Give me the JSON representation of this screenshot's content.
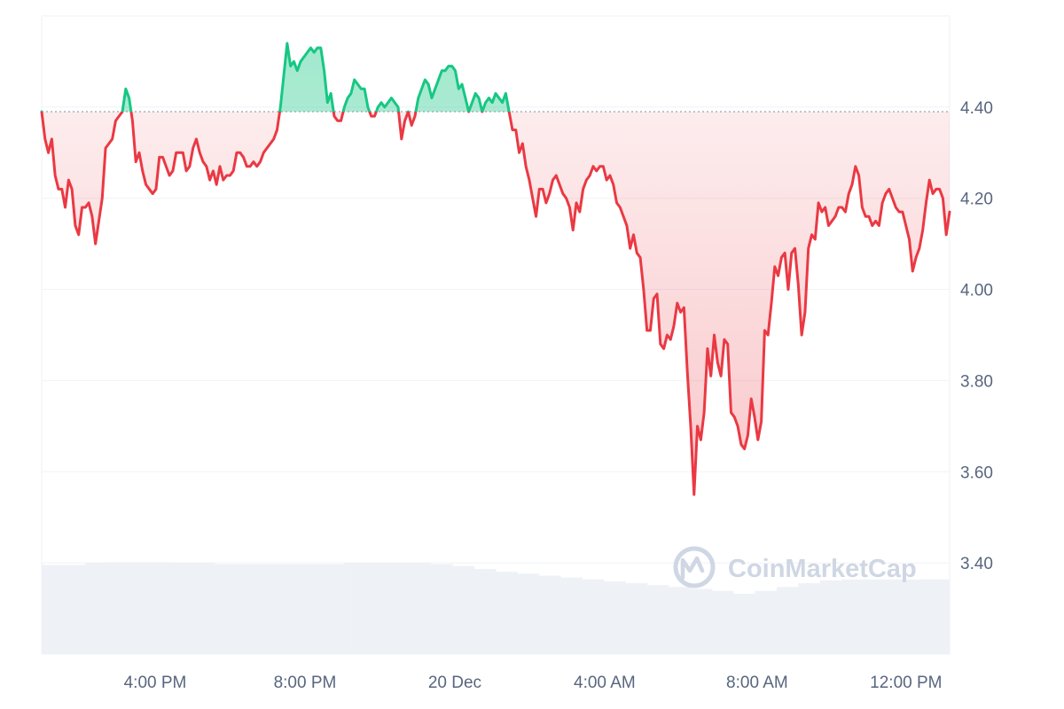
{
  "chart_data": {
    "type": "line",
    "title": "",
    "xlabel": "",
    "ylabel": "",
    "ylim": [
      3.2,
      4.6
    ],
    "reference_value": 4.39,
    "y_ticks": [
      3.4,
      3.6,
      3.8,
      4.0,
      4.2,
      4.4
    ],
    "y_tick_labels": [
      "3.40",
      "3.60",
      "3.80",
      "4.00",
      "4.20",
      "4.40"
    ],
    "x_tick_labels": [
      "4:00 PM",
      "8:00 PM",
      "20 Dec",
      "4:00 AM",
      "8:00 AM",
      "12:00 PM"
    ],
    "x_tick_positions": [
      0.125,
      0.29,
      0.455,
      0.62,
      0.788,
      0.952
    ],
    "grid": true,
    "colors": {
      "up": "#16c784",
      "down": "#ea3943",
      "grid": "#eff2f5",
      "volume": "#eef1f6"
    },
    "series": [
      {
        "values": [
          4.39,
          4.33,
          4.3,
          4.33,
          4.25,
          4.22,
          4.22,
          4.18,
          4.24,
          4.22,
          4.14,
          4.12,
          4.18,
          4.18,
          4.19,
          4.16,
          4.1,
          4.15,
          4.2,
          4.31,
          4.32,
          4.33,
          4.37,
          4.38,
          4.39,
          4.44,
          4.42,
          4.37,
          4.28,
          4.3,
          4.26,
          4.23,
          4.22,
          4.21,
          4.22,
          4.29,
          4.29,
          4.27,
          4.25,
          4.26,
          4.3,
          4.3,
          4.3,
          4.26,
          4.27,
          4.31,
          4.33,
          4.3,
          4.28,
          4.27,
          4.24,
          4.26,
          4.23,
          4.27,
          4.24,
          4.25,
          4.25,
          4.26,
          4.3,
          4.3,
          4.29,
          4.27,
          4.27,
          4.28,
          4.27,
          4.28,
          4.3,
          4.31,
          4.32,
          4.33,
          4.35,
          4.4,
          4.47,
          4.54,
          4.49,
          4.5,
          4.48,
          4.5,
          4.51,
          4.52,
          4.53,
          4.52,
          4.53,
          4.53,
          4.48,
          4.41,
          4.43,
          4.38,
          4.37,
          4.37,
          4.4,
          4.42,
          4.43,
          4.46,
          4.45,
          4.44,
          4.44,
          4.4,
          4.38,
          4.38,
          4.4,
          4.41,
          4.4,
          4.41,
          4.42,
          4.41,
          4.4,
          4.33,
          4.37,
          4.39,
          4.36,
          4.38,
          4.42,
          4.44,
          4.46,
          4.45,
          4.42,
          4.44,
          4.46,
          4.48,
          4.48,
          4.49,
          4.49,
          4.48,
          4.44,
          4.45,
          4.42,
          4.39,
          4.41,
          4.43,
          4.42,
          4.39,
          4.41,
          4.42,
          4.41,
          4.43,
          4.42,
          4.41,
          4.43,
          4.39,
          4.35,
          4.35,
          4.3,
          4.32,
          4.27,
          4.24,
          4.2,
          4.16,
          4.22,
          4.22,
          4.19,
          4.21,
          4.24,
          4.25,
          4.23,
          4.21,
          4.2,
          4.18,
          4.13,
          4.19,
          4.17,
          4.22,
          4.24,
          4.25,
          4.27,
          4.26,
          4.27,
          4.27,
          4.24,
          4.25,
          4.23,
          4.19,
          4.18,
          4.16,
          4.14,
          4.09,
          4.12,
          4.08,
          4.07,
          4.0,
          3.91,
          3.91,
          3.98,
          3.99,
          3.88,
          3.87,
          3.9,
          3.89,
          3.92,
          3.97,
          3.95,
          3.96,
          3.82,
          3.7,
          3.55,
          3.7,
          3.67,
          3.73,
          3.87,
          3.81,
          3.9,
          3.84,
          3.81,
          3.89,
          3.88,
          3.73,
          3.72,
          3.7,
          3.66,
          3.65,
          3.68,
          3.76,
          3.72,
          3.67,
          3.71,
          3.91,
          3.9,
          3.97,
          4.05,
          4.03,
          4.07,
          4.08,
          4.0,
          4.08,
          4.09,
          4.01,
          3.9,
          3.95,
          4.09,
          4.12,
          4.11,
          4.19,
          4.17,
          4.18,
          4.14,
          4.15,
          4.16,
          4.18,
          4.18,
          4.17,
          4.21,
          4.23,
          4.27,
          4.25,
          4.18,
          4.16,
          4.16,
          4.14,
          4.15,
          4.14,
          4.19,
          4.21,
          4.22,
          4.2,
          4.18,
          4.17,
          4.17,
          4.14,
          4.11,
          4.04,
          4.07,
          4.09,
          4.13,
          4.19,
          4.24,
          4.21,
          4.22,
          4.22,
          4.2,
          4.12,
          4.17
        ]
      }
    ],
    "volume_levels": [
      0.93,
      0.93,
      0.95,
      0.96,
      0.96,
      0.96,
      0.95,
      0.95,
      0.94,
      0.94,
      0.94,
      0.94,
      0.94,
      0.94,
      0.95,
      0.95,
      0.95,
      0.95,
      0.94,
      0.92,
      0.89,
      0.86,
      0.84,
      0.82,
      0.8,
      0.78,
      0.76,
      0.74,
      0.72,
      0.7,
      0.68,
      0.66,
      0.63,
      0.66,
      0.7,
      0.74,
      0.77,
      0.78,
      0.78,
      0.78,
      0.78,
      0.78
    ]
  },
  "watermark": {
    "text": "CoinMarketCap"
  }
}
